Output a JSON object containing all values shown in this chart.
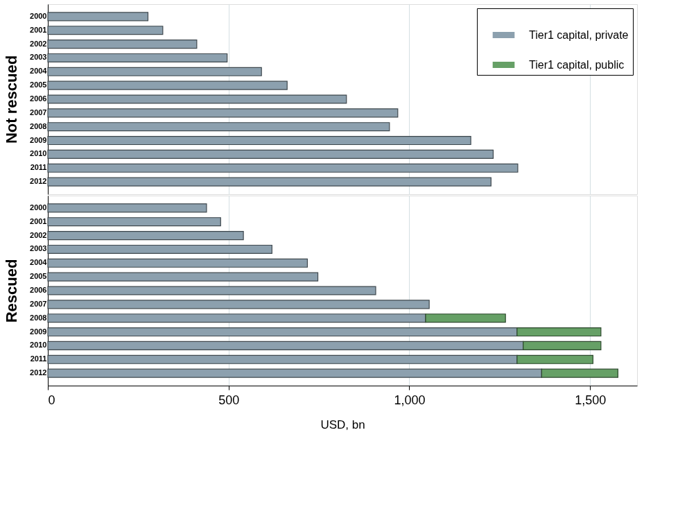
{
  "chart_data": [
    {
      "type": "bar",
      "orientation": "horizontal",
      "stacked": true,
      "ylabel": "Not rescued",
      "categories": [
        "2000",
        "2001",
        "2002",
        "2003",
        "2004",
        "2005",
        "2006",
        "2007",
        "2008",
        "2009",
        "2010",
        "2011",
        "2012"
      ],
      "series": [
        {
          "name": "Tier1 capital, private",
          "color": "#8ca0ae",
          "values": [
            277,
            318,
            412,
            496,
            591,
            662,
            826,
            968,
            945,
            1170,
            1232,
            1300,
            1226
          ]
        },
        {
          "name": "Tier1 capital, public",
          "color": "#66a066",
          "values": [
            null,
            null,
            null,
            null,
            null,
            null,
            null,
            null,
            null,
            null,
            null,
            null,
            null
          ]
        }
      ],
      "xlim": [
        0,
        1630
      ],
      "xticks": [
        0,
        500,
        1000,
        1500
      ],
      "tick_labels": "y",
      "grid": "x",
      "legend": "top right"
    },
    {
      "type": "bar",
      "orientation": "horizontal",
      "stacked": true,
      "ylabel": "Rescued",
      "xlabel": "USD, bn",
      "categories": [
        "2000",
        "2001",
        "2002",
        "2003",
        "2004",
        "2005",
        "2006",
        "2007",
        "2008",
        "2009",
        "2010",
        "2011",
        "2012"
      ],
      "series": [
        {
          "color": "#8ca0ae",
          "values": [
            439,
            478,
            541,
            620,
            718,
            747,
            907,
            1055,
            1045,
            1298,
            1315,
            1298,
            1366
          ]
        },
        {
          "color": "#66a066",
          "values": [
            null,
            null,
            null,
            null,
            null,
            null,
            null,
            null,
            221,
            232,
            215,
            210,
            211
          ]
        }
      ],
      "xlim": [
        0,
        1630
      ],
      "xticks": [
        0,
        500,
        {
          "value": 1000,
          "label": "1,000"
        },
        {
          "value": 1500,
          "label": "1,500"
        }
      ],
      "grid": "x",
      "legend": false
    }
  ]
}
